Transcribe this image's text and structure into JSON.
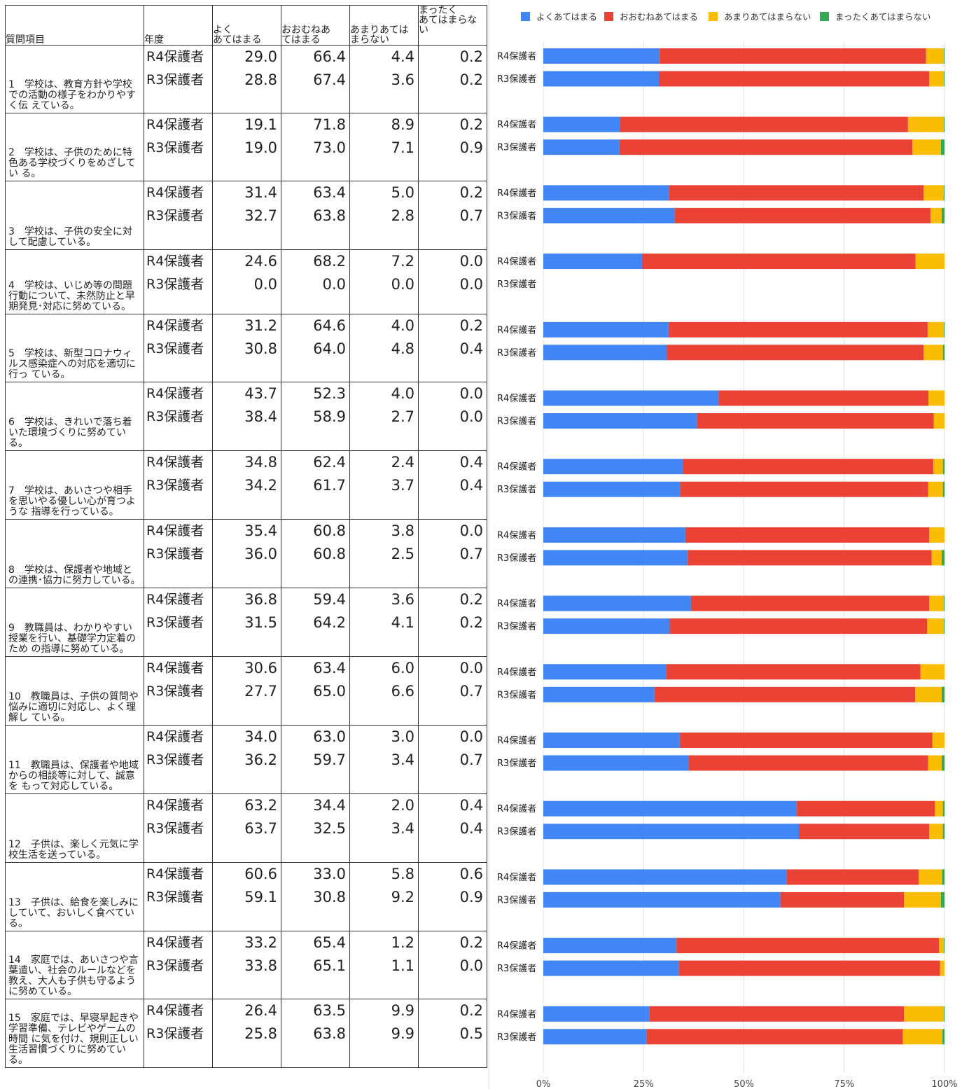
{
  "table": {
    "headers": {
      "question": "質問項目",
      "year": "年度",
      "c1": "よく\nあてはまる",
      "c2": "おおむねあ\nてはまる",
      "c3": "あまりあては\nまらない",
      "c4": "まったく\nあてはまらな\nい"
    }
  },
  "chart_data": {
    "type": "bar",
    "orientation": "horizontal",
    "stacked": true,
    "percent": true,
    "series": [
      {
        "name": "よくあてはまる",
        "color": "#4285f4"
      },
      {
        "name": "おおむねあてはまる",
        "color": "#ea4335"
      },
      {
        "name": "あまりあてはまらない",
        "color": "#fbbc04"
      },
      {
        "name": "まったくあてはまらない",
        "color": "#34a853"
      }
    ],
    "legend_position": "top",
    "x_ticks": [
      "0%",
      "25%",
      "50%",
      "75%",
      "100%"
    ],
    "xlim": [
      0,
      100
    ],
    "grid": true,
    "questions": [
      {
        "label": "1　学校は、教育方針や学校での活動の様子をわかりやすく伝 えている。",
        "rows": [
          {
            "year": "R4保護者",
            "values": [
              29.0,
              66.4,
              4.4,
              0.2
            ]
          },
          {
            "year": "R3保護者",
            "values": [
              28.8,
              67.4,
              3.6,
              0.2
            ]
          }
        ]
      },
      {
        "label": "2　学校は、子供のために特色ある学校づくりをめざしてい る。",
        "rows": [
          {
            "year": "R4保護者",
            "values": [
              19.1,
              71.8,
              8.9,
              0.2
            ]
          },
          {
            "year": "R3保護者",
            "values": [
              19.0,
              73.0,
              7.1,
              0.9
            ]
          }
        ]
      },
      {
        "label": "3　学校は、子供の安全に対して配慮している。",
        "rows": [
          {
            "year": "R4保護者",
            "values": [
              31.4,
              63.4,
              5.0,
              0.2
            ]
          },
          {
            "year": "R3保護者",
            "values": [
              32.7,
              63.8,
              2.8,
              0.7
            ]
          }
        ]
      },
      {
        "label": "4　学校は、いじめ等の問題行動について、未然防止と早期発見･対応に努めている。",
        "rows": [
          {
            "year": "R4保護者",
            "values": [
              24.6,
              68.2,
              7.2,
              0.0
            ]
          },
          {
            "year": "R3保護者",
            "values": [
              0.0,
              0.0,
              0.0,
              0.0
            ]
          }
        ]
      },
      {
        "label": "5　学校は、新型コロナウィルス感染症への対応を適切に行っ ている。",
        "rows": [
          {
            "year": "R4保護者",
            "values": [
              31.2,
              64.6,
              4.0,
              0.2
            ]
          },
          {
            "year": "R3保護者",
            "values": [
              30.8,
              64.0,
              4.8,
              0.4
            ]
          }
        ]
      },
      {
        "label": "6　学校は、きれいで落ち着いた環境づくりに努めている。",
        "rows": [
          {
            "year": "R4保護者",
            "values": [
              43.7,
              52.3,
              4.0,
              0.0
            ]
          },
          {
            "year": "R3保護者",
            "values": [
              38.4,
              58.9,
              2.7,
              0.0
            ]
          }
        ]
      },
      {
        "label": "7　学校は、あいさつや相手を思いやる優しい心が育つような 指導を行っている。",
        "rows": [
          {
            "year": "R4保護者",
            "values": [
              34.8,
              62.4,
              2.4,
              0.4
            ]
          },
          {
            "year": "R3保護者",
            "values": [
              34.2,
              61.7,
              3.7,
              0.4
            ]
          }
        ]
      },
      {
        "label": "8　学校は、保護者や地域との連携･協力に努力している。",
        "rows": [
          {
            "year": "R4保護者",
            "values": [
              35.4,
              60.8,
              3.8,
              0.0
            ]
          },
          {
            "year": "R3保護者",
            "values": [
              36.0,
              60.8,
              2.5,
              0.7
            ]
          }
        ]
      },
      {
        "label": "9　教職員は、わかりやすい授業を行い、基礎学力定着のため の指導に努めている。",
        "rows": [
          {
            "year": "R4保護者",
            "values": [
              36.8,
              59.4,
              3.6,
              0.2
            ]
          },
          {
            "year": "R3保護者",
            "values": [
              31.5,
              64.2,
              4.1,
              0.2
            ]
          }
        ]
      },
      {
        "label": "10　教職員は、子供の質問や悩みに適切に対応し、よく理解し ている。",
        "rows": [
          {
            "year": "R4保護者",
            "values": [
              30.6,
              63.4,
              6.0,
              0.0
            ]
          },
          {
            "year": "R3保護者",
            "values": [
              27.7,
              65.0,
              6.6,
              0.7
            ]
          }
        ]
      },
      {
        "label": "11　教職員は、保護者や地域からの相談等に対して、誠意を もって対応している。",
        "rows": [
          {
            "year": "R4保護者",
            "values": [
              34.0,
              63.0,
              3.0,
              0.0
            ]
          },
          {
            "year": "R3保護者",
            "values": [
              36.2,
              59.7,
              3.4,
              0.7
            ]
          }
        ]
      },
      {
        "label": "12　子供は、楽しく元気に学校生活を送っている。",
        "rows": [
          {
            "year": "R4保護者",
            "values": [
              63.2,
              34.4,
              2.0,
              0.4
            ]
          },
          {
            "year": "R3保護者",
            "values": [
              63.7,
              32.5,
              3.4,
              0.4
            ]
          }
        ]
      },
      {
        "label": "13　子供は、給食を楽しみにしていて、おいしく食べている。",
        "rows": [
          {
            "year": "R4保護者",
            "values": [
              60.6,
              33.0,
              5.8,
              0.6
            ]
          },
          {
            "year": "R3保護者",
            "values": [
              59.1,
              30.8,
              9.2,
              0.9
            ]
          }
        ]
      },
      {
        "label": "14　家庭では、あいさつや言葉遣い、社会のルールなどを教え、大人も子供も守るように努めている。",
        "rows": [
          {
            "year": "R4保護者",
            "values": [
              33.2,
              65.4,
              1.2,
              0.2
            ]
          },
          {
            "year": "R3保護者",
            "values": [
              33.8,
              65.1,
              1.1,
              0.0
            ]
          }
        ]
      },
      {
        "label": "15　家庭では、早寝早起きや学習準備、テレビやゲームの時間 に気を付け、規則正しい生活習慣づくりに努めている。",
        "rows": [
          {
            "year": "R4保護者",
            "values": [
              26.4,
              63.5,
              9.9,
              0.2
            ]
          },
          {
            "year": "R3保護者",
            "values": [
              25.8,
              63.8,
              9.9,
              0.5
            ]
          }
        ]
      }
    ]
  }
}
